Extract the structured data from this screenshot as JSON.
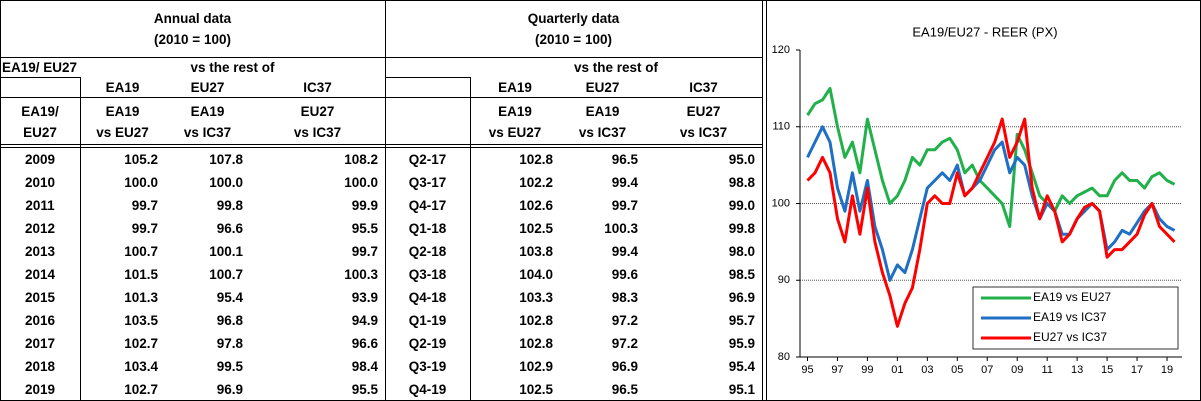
{
  "table": {
    "annual_title": "Annual data",
    "annual_base": "(2010 = 100)",
    "quarterly_title": "Quarterly data",
    "quarterly_base": "(2010 = 100)",
    "row_group_label": "EA19/ EU27",
    "annual_vs": "vs the rest of",
    "quarterly_vs": "vs the rest of",
    "annual_col_groups": [
      "EA19",
      "EU27",
      "IC37"
    ],
    "quarterly_col_groups": [
      "EA19",
      "EU27",
      "IC37"
    ],
    "annual_row_header": [
      "EA19/",
      "EU27"
    ],
    "annual_cols": [
      [
        "EA19",
        "vs EU27"
      ],
      [
        "EA19",
        "vs IC37"
      ],
      [
        "EU27",
        "vs IC37"
      ]
    ],
    "quarterly_cols": [
      [
        "EA19",
        "vs EU27"
      ],
      [
        "EA19",
        "vs IC37"
      ],
      [
        "EU27",
        "vs IC37"
      ]
    ],
    "annual_rows": [
      [
        "2009",
        "105.2",
        "107.8",
        "108.2"
      ],
      [
        "2010",
        "100.0",
        "100.0",
        "100.0"
      ],
      [
        "2011",
        "99.7",
        "99.8",
        "99.9"
      ],
      [
        "2012",
        "99.7",
        "96.6",
        "95.5"
      ],
      [
        "2013",
        "100.7",
        "100.1",
        "99.7"
      ],
      [
        "2014",
        "101.5",
        "100.7",
        "100.3"
      ],
      [
        "2015",
        "101.3",
        "95.4",
        "93.9"
      ],
      [
        "2016",
        "103.5",
        "96.8",
        "94.9"
      ],
      [
        "2017",
        "102.7",
        "97.8",
        "96.6"
      ],
      [
        "2018",
        "103.4",
        "99.5",
        "98.4"
      ],
      [
        "2019",
        "102.7",
        "96.9",
        "95.5"
      ]
    ],
    "quarterly_rows": [
      [
        "Q2-17",
        "102.8",
        "96.5",
        "95.0"
      ],
      [
        "Q3-17",
        "102.2",
        "99.4",
        "98.8"
      ],
      [
        "Q4-17",
        "102.6",
        "99.7",
        "99.0"
      ],
      [
        "Q1-18",
        "102.5",
        "100.3",
        "99.8"
      ],
      [
        "Q2-18",
        "103.8",
        "99.4",
        "98.0"
      ],
      [
        "Q3-18",
        "104.0",
        "99.6",
        "98.5"
      ],
      [
        "Q4-18",
        "103.3",
        "98.3",
        "96.9"
      ],
      [
        "Q1-19",
        "102.8",
        "97.2",
        "95.7"
      ],
      [
        "Q2-19",
        "102.8",
        "97.2",
        "95.9"
      ],
      [
        "Q3-19",
        "102.9",
        "96.9",
        "95.4"
      ],
      [
        "Q4-19",
        "102.5",
        "96.5",
        "95.1"
      ]
    ]
  },
  "chart_data": {
    "type": "line",
    "title": "EA19/EU27 - REER (PX)",
    "x": [
      1995,
      1995.5,
      1996,
      1996.5,
      1997,
      1997.5,
      1998,
      1998.5,
      1999,
      1999.5,
      2000,
      2000.5,
      2001,
      2001.5,
      2002,
      2002.5,
      2003,
      2003.5,
      2004,
      2004.5,
      2005,
      2005.5,
      2006,
      2006.5,
      2007,
      2007.5,
      2008,
      2008.5,
      2009,
      2009.5,
      2010,
      2010.5,
      2011,
      2011.5,
      2012,
      2012.5,
      2013,
      2013.5,
      2014,
      2014.5,
      2015,
      2015.5,
      2016,
      2016.5,
      2017,
      2017.5,
      2018,
      2018.5,
      2019,
      2019.5
    ],
    "series": [
      {
        "name": "EA19 vs EU27",
        "color": "#22b04b",
        "values": [
          111.5,
          113,
          113.5,
          115,
          110,
          106,
          108,
          104,
          111,
          107,
          103,
          100,
          101,
          103,
          106,
          105,
          107,
          107,
          108,
          108.5,
          107,
          104,
          105,
          103,
          102,
          101,
          100,
          97,
          109,
          107,
          104,
          101,
          100,
          99,
          101,
          100,
          101,
          101.5,
          102,
          101,
          101,
          103,
          104,
          103,
          103,
          102,
          103.5,
          104,
          103,
          102.5
        ]
      },
      {
        "name": "EA19 vs IC37",
        "color": "#1f6fc5",
        "values": [
          106,
          108,
          110,
          108,
          102,
          99,
          104,
          99,
          103,
          97,
          94,
          90,
          92,
          91,
          94,
          98,
          102,
          103,
          104,
          103,
          105,
          101,
          102,
          103,
          105,
          107,
          108,
          104,
          106,
          105,
          101,
          98,
          100,
          99,
          96,
          96,
          98,
          99,
          100,
          99,
          94,
          95,
          96.5,
          96,
          97.5,
          99,
          100,
          98,
          97,
          96.5
        ]
      },
      {
        "name": "EU27 vs IC37",
        "color": "#ff0000",
        "values": [
          103,
          104,
          106,
          104,
          98,
          95,
          101,
          96,
          102,
          95,
          91,
          88,
          84,
          87,
          89,
          94,
          100,
          101,
          100,
          100,
          104,
          101,
          102,
          104,
          106,
          108,
          111,
          106,
          108,
          111,
          102,
          98,
          101,
          99,
          95,
          96,
          98,
          99.5,
          100,
          99,
          93,
          94,
          94,
          95,
          96,
          98.5,
          100,
          97,
          96,
          95
        ]
      }
    ],
    "xlim": [
      1994.5,
      2020
    ],
    "xticks": [
      {
        "value": 1995,
        "label": "95"
      },
      {
        "value": 1997,
        "label": "97"
      },
      {
        "value": 1999,
        "label": "99"
      },
      {
        "value": 2001,
        "label": "01"
      },
      {
        "value": 2003,
        "label": "03"
      },
      {
        "value": 2005,
        "label": "05"
      },
      {
        "value": 2007,
        "label": "07"
      },
      {
        "value": 2009,
        "label": "09"
      },
      {
        "value": 2011,
        "label": "11"
      },
      {
        "value": 2013,
        "label": "13"
      },
      {
        "value": 2015,
        "label": "15"
      },
      {
        "value": 2017,
        "label": "17"
      },
      {
        "value": 2019,
        "label": "19"
      }
    ],
    "ylim": [
      80,
      120
    ],
    "yticks": [
      80,
      90,
      100,
      110,
      120
    ],
    "grid": true,
    "legend": "lower right"
  }
}
